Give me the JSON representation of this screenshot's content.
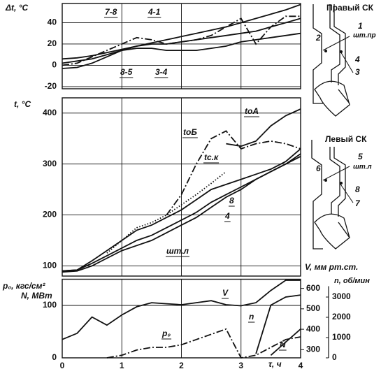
{
  "chart_data": [
    {
      "type": "line",
      "ylabel": "Δt, °C",
      "x": [
        0,
        0.25,
        0.5,
        0.75,
        1,
        1.25,
        1.5,
        1.75,
        2,
        2.25,
        2.5,
        2.75,
        3,
        3.25,
        3.5,
        3.75,
        4
      ],
      "xlim": [
        0,
        4
      ],
      "ylim": [
        -22,
        58
      ],
      "yticks": [
        -20,
        0,
        20,
        40
      ],
      "grid": true,
      "series": [
        {
          "name": "7-8",
          "color": "#111111",
          "style": "dashdot",
          "values": [
            0,
            2,
            8,
            14,
            20,
            26,
            24,
            20,
            22,
            24,
            28,
            36,
            44,
            20,
            36,
            46,
            46
          ]
        },
        {
          "name": "4-1",
          "color": "#111111",
          "style": "solid",
          "values": [
            6,
            7,
            9,
            12,
            15,
            18,
            21,
            24,
            27,
            30,
            33,
            36,
            40,
            44,
            48,
            52,
            57
          ]
        },
        {
          "name": "8-5",
          "color": "#111111",
          "style": "solid",
          "values": [
            -3,
            -2,
            2,
            8,
            14,
            18,
            20,
            20,
            22,
            24,
            26,
            28,
            30,
            32,
            36,
            40,
            44
          ]
        },
        {
          "name": "3-4",
          "color": "#111111",
          "style": "solid",
          "values": [
            2,
            4,
            6,
            10,
            14,
            16,
            16,
            14,
            14,
            14,
            16,
            18,
            22,
            24,
            26,
            28,
            30
          ]
        }
      ]
    },
    {
      "type": "line",
      "ylabel": "t, °C",
      "x": [
        0,
        0.25,
        0.5,
        0.75,
        1,
        1.25,
        1.5,
        1.75,
        2,
        2.25,
        2.5,
        2.75,
        3,
        3.25,
        3.5,
        3.75,
        4
      ],
      "xlim": [
        0,
        4
      ],
      "ylim": [
        80,
        430
      ],
      "yticks": [
        100,
        200,
        300,
        400
      ],
      "grid": true,
      "series": [
        {
          "name": "tоА",
          "color": "#111111",
          "style": "solid",
          "values": [
            null,
            null,
            null,
            null,
            null,
            null,
            null,
            null,
            null,
            null,
            null,
            340,
            335,
            345,
            375,
            395,
            408
          ]
        },
        {
          "name": "tоБ",
          "color": "#111111",
          "style": "dashdot",
          "values": [
            null,
            null,
            null,
            null,
            null,
            null,
            null,
            200,
            240,
            300,
            350,
            365,
            330,
            340,
            345,
            340,
            330
          ]
        },
        {
          "name": "tс.к",
          "color": "#111111",
          "style": "dotted",
          "values": [
            null,
            null,
            null,
            125,
            150,
            175,
            185,
            200,
            220,
            240,
            262,
            285,
            null,
            null,
            null,
            null,
            null
          ]
        },
        {
          "name": "8",
          "color": "#111111",
          "style": "solid",
          "values": [
            90,
            92,
            110,
            130,
            150,
            170,
            180,
            195,
            210,
            230,
            250,
            260,
            270,
            280,
            290,
            305,
            330
          ]
        },
        {
          "name": "4",
          "color": "#111111",
          "style": "solid",
          "values": [
            90,
            92,
            105,
            120,
            135,
            150,
            160,
            175,
            190,
            205,
            225,
            240,
            255,
            270,
            285,
            300,
            320
          ]
        },
        {
          "name": "шт.л",
          "color": "#111111",
          "style": "solid",
          "values": [
            88,
            90,
            100,
            115,
            130,
            140,
            150,
            165,
            180,
            195,
            215,
            235,
            250,
            270,
            285,
            300,
            315
          ]
        }
      ]
    },
    {
      "type": "line",
      "ylabels": [
        "p₀, кгс/см²",
        "N, МВт"
      ],
      "y2label": "V, мм рт.ст.",
      "y3label": "n, об/мин",
      "xlabel": "τ, ч",
      "x": [
        0,
        0.25,
        0.5,
        0.75,
        1,
        1.25,
        1.5,
        1.75,
        2,
        2.25,
        2.5,
        2.75,
        3,
        3.25,
        3.5,
        3.75,
        4
      ],
      "xlim": [
        0,
        4
      ],
      "xticks": [
        0,
        1,
        2,
        3,
        4
      ],
      "ylim": [
        0,
        150
      ],
      "yticks": [
        0,
        100
      ],
      "y2lim": [
        260,
        645
      ],
      "y2ticks": [
        300,
        400,
        500,
        600
      ],
      "y3lim": [
        0,
        3880
      ],
      "y3ticks": [
        0,
        1000,
        2000,
        3000
      ],
      "grid": true,
      "series": [
        {
          "name": "V",
          "color": "#111111",
          "style": "solid",
          "axis": "y2",
          "values": [
            350,
            380,
            460,
            420,
            470,
            510,
            530,
            525,
            520,
            530,
            540,
            520,
            515,
            530,
            590,
            640,
            640
          ]
        },
        {
          "name": "n",
          "color": "#111111",
          "style": "solid",
          "axis": "y3",
          "values": [
            null,
            null,
            null,
            null,
            null,
            null,
            null,
            null,
            null,
            null,
            null,
            null,
            null,
            200,
            2600,
            3000,
            3100
          ]
        },
        {
          "name": "p₀",
          "color": "#111111",
          "style": "dashdot",
          "values": [
            null,
            null,
            null,
            0,
            5,
            15,
            20,
            20,
            25,
            35,
            45,
            55,
            0,
            5,
            20,
            35,
            40
          ]
        },
        {
          "name": "N",
          "color": "#111111",
          "style": "solid",
          "values": [
            null,
            null,
            null,
            null,
            null,
            null,
            null,
            null,
            null,
            null,
            null,
            null,
            null,
            null,
            5,
            30,
            55
          ]
        }
      ]
    }
  ],
  "diagrams": [
    {
      "title": "Правый СК",
      "labels": [
        "1",
        "шт.пр",
        "2",
        "4",
        "3"
      ]
    },
    {
      "title": "Левый СК",
      "labels": [
        "5",
        "шт.л",
        "6",
        "8",
        "7"
      ]
    }
  ]
}
